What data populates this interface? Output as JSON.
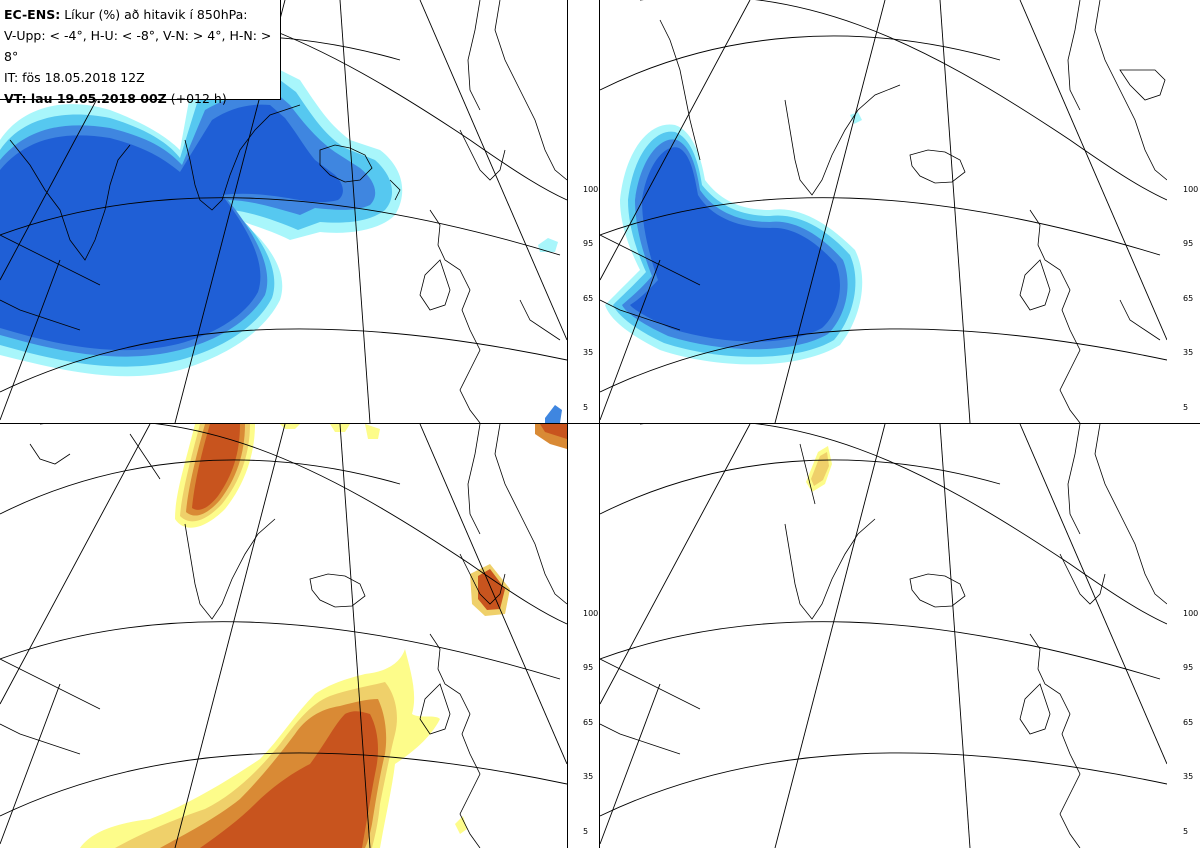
{
  "title": {
    "model": "EC-ENS:",
    "description": "Líkur (%) að hitavik í 850hPa:",
    "thresholds": "V-Upp: < -4°, H-U: < -8°, V-N: > 4°, H-N: > 8°",
    "init_time": "IT: fös 18.05.2018 12Z",
    "valid_label": "VT: lau 19.05.2018 00Z",
    "lead_time": "(+012 h)"
  },
  "panels": [
    {
      "id": "upper-left",
      "threshold": "< -4°",
      "palette": "cold"
    },
    {
      "id": "upper-right",
      "threshold": "< -8°",
      "palette": "cold"
    },
    {
      "id": "lower-left",
      "threshold": "> 4°",
      "palette": "warm"
    },
    {
      "id": "lower-right",
      "threshold": "> 8°",
      "palette": "warm"
    }
  ],
  "colorbar": {
    "ticks": [
      "100",
      "95",
      "65",
      "35",
      "5"
    ],
    "cold_colors": [
      "#1f5fd6",
      "#3f86e0",
      "#56c8f0",
      "#a8f6fb"
    ],
    "warm_colors": [
      "#c8541e",
      "#d98a35",
      "#efd06a",
      "#fdfc8a"
    ]
  }
}
